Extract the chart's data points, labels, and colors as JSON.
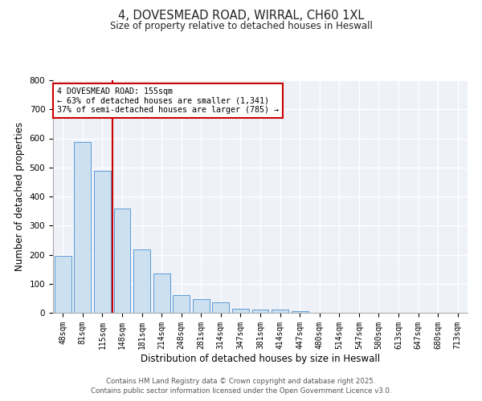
{
  "title": "4, DOVESMEAD ROAD, WIRRAL, CH60 1XL",
  "subtitle": "Size of property relative to detached houses in Heswall",
  "xlabel": "Distribution of detached houses by size in Heswall",
  "ylabel": "Number of detached properties",
  "bar_labels": [
    "48sqm",
    "81sqm",
    "115sqm",
    "148sqm",
    "181sqm",
    "214sqm",
    "248sqm",
    "281sqm",
    "314sqm",
    "347sqm",
    "381sqm",
    "414sqm",
    "447sqm",
    "480sqm",
    "514sqm",
    "547sqm",
    "580sqm",
    "613sqm",
    "647sqm",
    "680sqm",
    "713sqm"
  ],
  "bar_values": [
    197,
    588,
    487,
    359,
    218,
    135,
    62,
    47,
    35,
    15,
    10,
    10,
    5,
    0,
    0,
    0,
    0,
    0,
    0,
    0,
    0
  ],
  "bar_color": "#cce0f0",
  "bar_edge_color": "#5b9bd5",
  "vline_x_idx": 2.5,
  "vline_color": "#cc0000",
  "annotation_title": "4 DOVESMEAD ROAD: 155sqm",
  "annotation_line1": "← 63% of detached houses are smaller (1,341)",
  "annotation_line2": "37% of semi-detached houses are larger (785) →",
  "annotation_box_edge": "#cc0000",
  "ylim": [
    0,
    800
  ],
  "yticks": [
    0,
    100,
    200,
    300,
    400,
    500,
    600,
    700,
    800
  ],
  "background_color": "#eef2f8",
  "footer1": "Contains HM Land Registry data © Crown copyright and database right 2025.",
  "footer2": "Contains public sector information licensed under the Open Government Licence v3.0."
}
